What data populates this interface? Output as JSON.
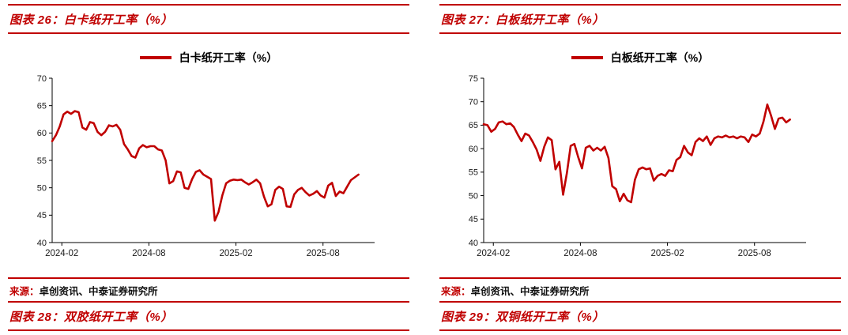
{
  "accent_color": "#C00000",
  "panels": [
    {
      "title": "图表 26：白卡纸开工率（%）",
      "legend_label": "白卡纸开工率（%）",
      "source_label": "来源：",
      "source_text": "卓创资讯、中泰证券研究所",
      "bottom_title": "图表 28：双胶纸开工率（%）"
    },
    {
      "title": "图表 27：白板纸开工率（%）",
      "legend_label": "白板纸开工率（%）",
      "source_label": "来源：",
      "source_text": "卓创资讯、中泰证券研究所",
      "bottom_title": "图表 29：双铜纸开工率（%）"
    }
  ],
  "chart_data": [
    {
      "type": "line",
      "title": "图表 26：白卡纸开工率（%）",
      "legend_position": "top",
      "grid": false,
      "ylim": [
        40,
        70
      ],
      "yticks": [
        40,
        45,
        50,
        55,
        60,
        65,
        70
      ],
      "x_ticks": [
        {
          "label": "2024-02",
          "f": 0.03
        },
        {
          "label": "2024-08",
          "f": 0.3
        },
        {
          "label": "2025-02",
          "f": 0.57
        },
        {
          "label": "2025-08",
          "f": 0.84
        }
      ],
      "series": [
        {
          "name": "白卡纸开工率（%）",
          "color": "#C00000",
          "values": [
            58.5,
            59.6,
            61.2,
            63.4,
            63.9,
            63.5,
            64.0,
            63.8,
            61.0,
            60.6,
            62.0,
            61.8,
            60.2,
            59.6,
            60.2,
            61.4,
            61.2,
            61.5,
            60.6,
            58.0,
            57.0,
            55.8,
            55.5,
            57.2,
            57.8,
            57.4,
            57.6,
            57.6,
            57.0,
            56.8,
            55.0,
            50.8,
            51.2,
            53.0,
            52.8,
            50.0,
            49.8,
            51.6,
            52.9,
            53.2,
            52.4,
            52.0,
            51.6,
            44.0,
            45.6,
            48.6,
            50.8,
            51.3,
            51.5,
            51.4,
            51.5,
            51.0,
            50.6,
            51.0,
            51.5,
            50.8,
            48.4,
            46.6,
            47.0,
            49.6,
            50.2,
            49.8,
            46.6,
            46.5,
            48.8,
            49.6,
            50.0,
            49.2,
            48.6,
            48.9,
            49.4,
            48.6,
            48.2,
            50.4,
            50.9,
            48.5,
            49.3,
            49.0,
            50.2,
            51.4,
            51.9,
            52.4
          ]
        }
      ]
    },
    {
      "type": "line",
      "title": "图表 27：白板纸开工率（%）",
      "legend_position": "top",
      "grid": false,
      "ylim": [
        40,
        75
      ],
      "yticks": [
        40,
        45,
        50,
        55,
        60,
        65,
        70,
        75
      ],
      "x_ticks": [
        {
          "label": "2024-02",
          "f": 0.03
        },
        {
          "label": "2024-08",
          "f": 0.3
        },
        {
          "label": "2025-02",
          "f": 0.57
        },
        {
          "label": "2025-08",
          "f": 0.84
        }
      ],
      "series": [
        {
          "name": "白板纸开工率（%）",
          "color": "#C00000",
          "values": [
            65.2,
            65.0,
            63.6,
            64.2,
            65.6,
            65.8,
            65.2,
            65.4,
            64.6,
            63.0,
            61.6,
            63.2,
            62.8,
            61.4,
            59.8,
            57.4,
            60.4,
            62.4,
            61.8,
            55.6,
            57.2,
            50.2,
            54.8,
            60.6,
            61.0,
            58.2,
            55.8,
            60.2,
            60.6,
            59.6,
            60.2,
            59.6,
            60.4,
            58.0,
            52.0,
            51.4,
            48.8,
            50.4,
            49.0,
            48.6,
            53.4,
            55.6,
            56.0,
            55.6,
            55.8,
            53.2,
            54.2,
            54.6,
            54.2,
            55.4,
            55.2,
            57.6,
            58.2,
            60.6,
            59.2,
            58.6,
            61.4,
            62.2,
            61.6,
            62.6,
            60.8,
            62.2,
            62.6,
            62.4,
            62.8,
            62.4,
            62.6,
            62.2,
            62.6,
            62.4,
            61.4,
            63.0,
            62.6,
            63.2,
            65.8,
            69.4,
            67.0,
            64.2,
            66.4,
            66.6,
            65.6,
            66.2
          ]
        }
      ]
    }
  ]
}
